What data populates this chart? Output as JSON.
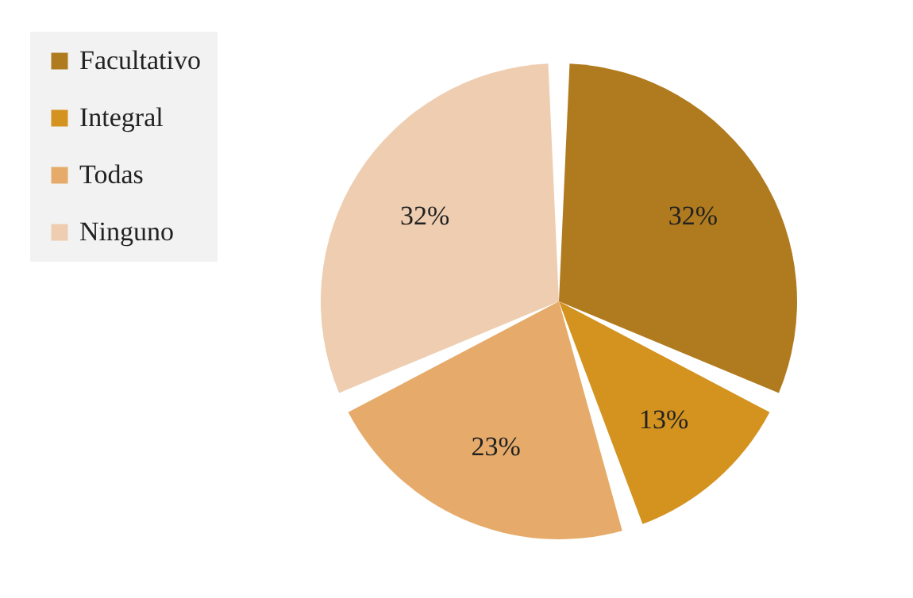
{
  "chart_data": {
    "type": "pie",
    "categories": [
      "Facultativo",
      "Integral",
      "Todas",
      "Ninguno"
    ],
    "values": [
      32,
      13,
      23,
      32
    ],
    "colors": [
      "#b07a1e",
      "#d4921f",
      "#e6ab6a",
      "#efcdb0"
    ],
    "value_labels": [
      "32%",
      "13%",
      "23%",
      "32%"
    ],
    "legend": "top left"
  }
}
